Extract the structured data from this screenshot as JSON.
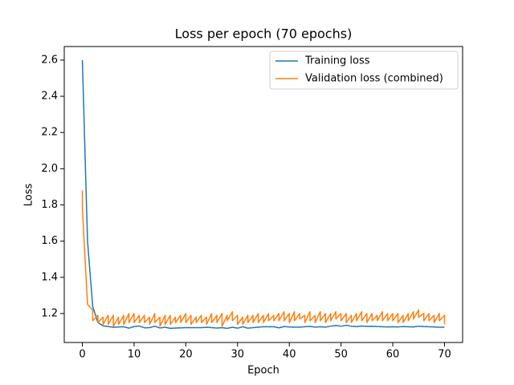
{
  "chart_data": {
    "type": "line",
    "title": "Loss per epoch (70 epochs)",
    "x_label": "Epoch",
    "y_label": "Loss",
    "xlim": [
      -3.5,
      73.5
    ],
    "ylim": [
      1.04,
      2.675
    ],
    "xticks": [
      0,
      10,
      20,
      30,
      40,
      50,
      60,
      70
    ],
    "yticks": [
      1.2,
      1.4,
      1.6,
      1.8,
      {
        "value": 2,
        "label": "2.0"
      },
      2.2,
      2.4,
      2.6
    ],
    "legend": "upper right",
    "grid": false,
    "series": [
      {
        "name": "Training loss",
        "color": "#1f77b4",
        "x": [
          0,
          1,
          2,
          3,
          4,
          5,
          6,
          7,
          8,
          9,
          10,
          11,
          12,
          13,
          14,
          15,
          16,
          17,
          18,
          19,
          20,
          21,
          22,
          23,
          24,
          25,
          26,
          27,
          28,
          29,
          30,
          31,
          32,
          33,
          34,
          35,
          36,
          37,
          38,
          39,
          40,
          41,
          42,
          43,
          44,
          45,
          46,
          47,
          48,
          49,
          50,
          51,
          52,
          53,
          54,
          55,
          56,
          57,
          58,
          59,
          60,
          61,
          62,
          63,
          64,
          65,
          66,
          67,
          68,
          69,
          70
        ],
        "values": [
          2.6,
          1.6,
          1.24,
          1.15,
          1.132,
          1.128,
          1.124,
          1.126,
          1.127,
          1.119,
          1.128,
          1.131,
          1.121,
          1.122,
          1.13,
          1.12,
          1.124,
          1.118,
          1.12,
          1.121,
          1.122,
          1.122,
          1.122,
          1.122,
          1.124,
          1.122,
          1.12,
          1.122,
          1.118,
          1.124,
          1.119,
          1.127,
          1.119,
          1.122,
          1.125,
          1.127,
          1.127,
          1.127,
          1.121,
          1.128,
          1.126,
          1.125,
          1.125,
          1.127,
          1.129,
          1.125,
          1.127,
          1.125,
          1.13,
          1.134,
          1.13,
          1.135,
          1.13,
          1.128,
          1.131,
          1.129,
          1.13,
          1.128,
          1.127,
          1.126,
          1.127,
          1.126,
          1.128,
          1.127,
          1.126,
          1.13,
          1.128,
          1.127,
          1.126,
          1.124,
          1.125
        ]
      },
      {
        "name": "Validation loss (combined)",
        "color": "#ff7f0e",
        "x": [
          0,
          0,
          1,
          1,
          2,
          2,
          3,
          3,
          4,
          4,
          5,
          5,
          6,
          6,
          7,
          7,
          8,
          8,
          9,
          9,
          10,
          10,
          11,
          11,
          12,
          12,
          13,
          13,
          14,
          14,
          15,
          15,
          16,
          16,
          17,
          17,
          18,
          18,
          19,
          19,
          20,
          20,
          21,
          21,
          22,
          22,
          23,
          23,
          24,
          24,
          25,
          25,
          26,
          26,
          27,
          27,
          28,
          28,
          29,
          29,
          30,
          30,
          31,
          31,
          32,
          32,
          33,
          33,
          34,
          34,
          35,
          35,
          36,
          36,
          37,
          37,
          38,
          38,
          39,
          39,
          40,
          40,
          41,
          41,
          42,
          42,
          43,
          43,
          44,
          44,
          45,
          45,
          46,
          46,
          47,
          47,
          48,
          48,
          49,
          49,
          50,
          50,
          51,
          51,
          52,
          52,
          53,
          53,
          54,
          54,
          55,
          55,
          56,
          56,
          57,
          57,
          58,
          58,
          59,
          59,
          60,
          60,
          61,
          61,
          62,
          62,
          63,
          63,
          64,
          64,
          65,
          65,
          66,
          66,
          67,
          67,
          68,
          68,
          69,
          69,
          70,
          70
        ],
        "values": [
          1.88,
          1.78,
          1.25,
          1.25,
          1.22,
          1.16,
          1.19,
          1.15,
          1.18,
          1.14,
          1.19,
          1.14,
          1.19,
          1.13,
          1.18,
          1.14,
          1.19,
          1.14,
          1.2,
          1.15,
          1.2,
          1.15,
          1.19,
          1.15,
          1.19,
          1.15,
          1.18,
          1.14,
          1.2,
          1.15,
          1.18,
          1.13,
          1.19,
          1.14,
          1.19,
          1.14,
          1.18,
          1.15,
          1.19,
          1.15,
          1.2,
          1.15,
          1.19,
          1.14,
          1.18,
          1.15,
          1.19,
          1.15,
          1.18,
          1.14,
          1.2,
          1.15,
          1.19,
          1.15,
          1.2,
          1.13,
          1.19,
          1.16,
          1.21,
          1.16,
          1.19,
          1.14,
          1.18,
          1.14,
          1.19,
          1.15,
          1.19,
          1.15,
          1.2,
          1.15,
          1.19,
          1.15,
          1.2,
          1.16,
          1.19,
          1.16,
          1.2,
          1.16,
          1.21,
          1.16,
          1.2,
          1.15,
          1.21,
          1.16,
          1.2,
          1.17,
          1.19,
          1.15,
          1.21,
          1.16,
          1.19,
          1.15,
          1.21,
          1.16,
          1.2,
          1.15,
          1.2,
          1.16,
          1.21,
          1.17,
          1.2,
          1.16,
          1.2,
          1.15,
          1.19,
          1.15,
          1.2,
          1.16,
          1.21,
          1.16,
          1.2,
          1.15,
          1.2,
          1.16,
          1.19,
          1.16,
          1.21,
          1.16,
          1.2,
          1.16,
          1.2,
          1.16,
          1.2,
          1.15,
          1.19,
          1.15,
          1.2,
          1.16,
          1.21,
          1.17,
          1.22,
          1.18,
          1.2,
          1.16,
          1.2,
          1.16,
          1.19,
          1.15,
          1.2,
          1.16,
          1.19,
          1.14
        ]
      }
    ]
  }
}
